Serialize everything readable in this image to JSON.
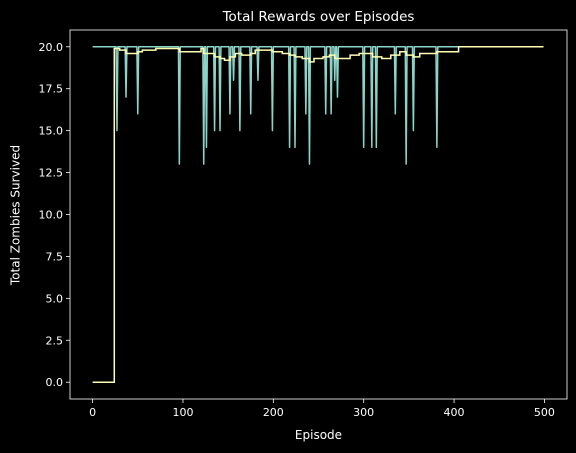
{
  "colors": {
    "background": "#000000",
    "axes": "#ffffff",
    "series_raw": "#8dd3c7",
    "series_avg": "#feffb3"
  },
  "chart_data": {
    "type": "line",
    "title": "Total Rewards over Episodes",
    "xlabel": "Episode",
    "ylabel": "Total Zombies Survived",
    "xlim": [
      -25,
      525
    ],
    "ylim": [
      -1,
      21
    ],
    "xticks": [
      0,
      100,
      200,
      300,
      400,
      500
    ],
    "yticks": [
      0.0,
      2.5,
      5.0,
      7.5,
      10.0,
      12.5,
      15.0,
      17.5,
      20.0
    ],
    "grid": false,
    "legend": "none",
    "series": [
      {
        "color": "#8dd3c7",
        "baseline": 20,
        "x_range": [
          0,
          499
        ],
        "dips": [
          [
            27,
            15
          ],
          [
            29,
            20
          ],
          [
            37,
            17
          ],
          [
            50,
            16
          ],
          [
            96,
            13
          ],
          [
            123,
            13
          ],
          [
            126,
            14
          ],
          [
            129,
            20
          ],
          [
            135,
            15
          ],
          [
            141,
            15
          ],
          [
            146,
            20
          ],
          [
            152,
            16
          ],
          [
            156,
            18
          ],
          [
            158,
            20
          ],
          [
            163,
            15
          ],
          [
            175,
            16
          ],
          [
            183,
            18
          ],
          [
            199,
            15
          ],
          [
            218,
            14
          ],
          [
            224,
            14
          ],
          [
            230,
            20
          ],
          [
            236,
            16
          ],
          [
            240,
            13
          ],
          [
            245,
            20
          ],
          [
            250,
            20
          ],
          [
            258,
            16
          ],
          [
            264,
            16
          ],
          [
            268,
            18
          ],
          [
            271,
            17
          ],
          [
            273,
            20
          ],
          [
            277,
            20
          ],
          [
            283,
            20
          ],
          [
            290,
            20
          ],
          [
            300,
            14
          ],
          [
            306,
            20
          ],
          [
            309,
            14
          ],
          [
            314,
            14
          ],
          [
            321,
            20
          ],
          [
            330,
            20
          ],
          [
            335,
            16
          ],
          [
            342,
            20
          ],
          [
            347,
            13
          ],
          [
            355,
            15
          ],
          [
            360,
            20
          ],
          [
            370,
            20
          ],
          [
            381,
            14
          ]
        ]
      },
      {
        "color": "#feffb3",
        "steps": [
          [
            0,
            0
          ],
          [
            24,
            0
          ],
          [
            24,
            19.9
          ],
          [
            30,
            19.8
          ],
          [
            37,
            19.6
          ],
          [
            50,
            19.7
          ],
          [
            55,
            19.8
          ],
          [
            70,
            19.9
          ],
          [
            96,
            19.7
          ],
          [
            120,
            19.9
          ],
          [
            123,
            19.6
          ],
          [
            135,
            19.4
          ],
          [
            141,
            19.3
          ],
          [
            146,
            19.2
          ],
          [
            152,
            19.4
          ],
          [
            158,
            19.6
          ],
          [
            165,
            19.5
          ],
          [
            175,
            19.6
          ],
          [
            180,
            19.8
          ],
          [
            199,
            19.7
          ],
          [
            210,
            19.6
          ],
          [
            218,
            19.5
          ],
          [
            224,
            19.4
          ],
          [
            232,
            19.3
          ],
          [
            240,
            19.1
          ],
          [
            245,
            19.3
          ],
          [
            255,
            19.4
          ],
          [
            262,
            19.5
          ],
          [
            268,
            19.3
          ],
          [
            285,
            19.5
          ],
          [
            295,
            19.6
          ],
          [
            310,
            19.4
          ],
          [
            320,
            19.3
          ],
          [
            330,
            19.5
          ],
          [
            340,
            19.7
          ],
          [
            347,
            19.5
          ],
          [
            355,
            19.4
          ],
          [
            362,
            19.6
          ],
          [
            381,
            19.7
          ],
          [
            405,
            20
          ],
          [
            499,
            20
          ]
        ]
      }
    ]
  }
}
